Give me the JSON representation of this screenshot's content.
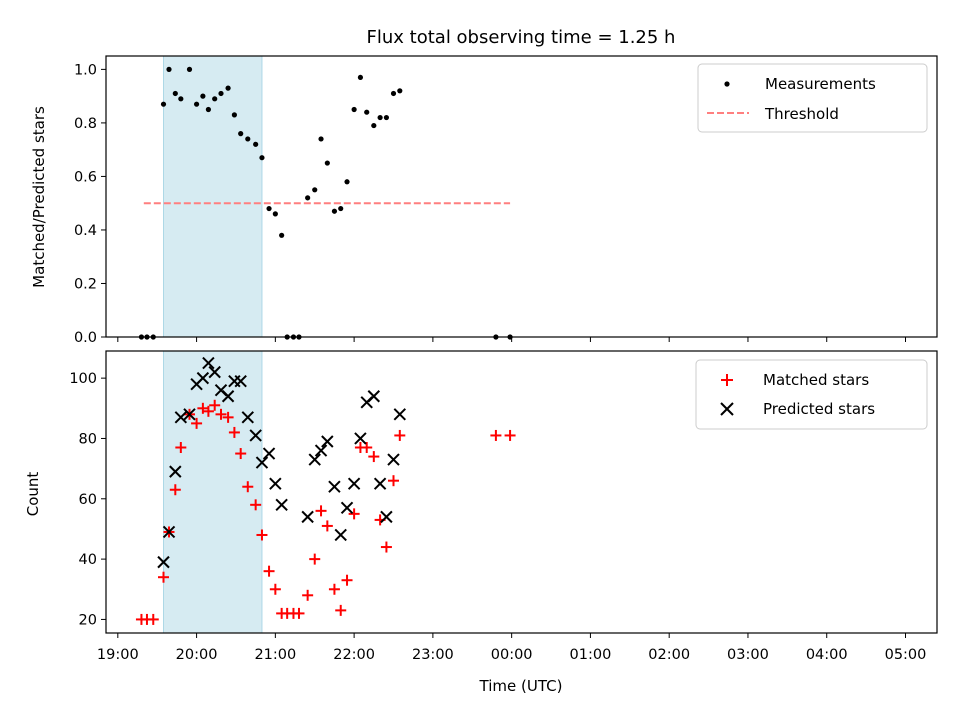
{
  "chart_data": [
    {
      "type": "scatter",
      "title": "Flux total observing time = 1.25 h",
      "ylabel": "Matched/Predicted stars",
      "xlabel": "",
      "x_unit": "hours since 19:00 UTC (x-axis shows times of day)",
      "xlim": [
        -0.15,
        10.4
      ],
      "ylim": [
        0.0,
        1.05
      ],
      "yticks": [
        0.0,
        0.2,
        0.4,
        0.6,
        0.8,
        1.0
      ],
      "ytick_labels": [
        "0.0",
        "0.2",
        "0.4",
        "0.6",
        "0.8",
        "1.0"
      ],
      "shaded_span": [
        0.58,
        1.83
      ],
      "legend_position": "upper right",
      "threshold": {
        "name": "Threshold",
        "y": 0.5,
        "x_range": [
          0.33,
          4.98
        ],
        "style": "dashed",
        "color": "#ff7f7f"
      },
      "series": [
        {
          "name": "Measurements",
          "color": "#000000",
          "marker": "dot",
          "points": [
            [
              0.3,
              0.0
            ],
            [
              0.37,
              0.0
            ],
            [
              0.45,
              0.0
            ],
            [
              0.58,
              0.87
            ],
            [
              0.65,
              1.0
            ],
            [
              0.73,
              0.91
            ],
            [
              0.8,
              0.89
            ],
            [
              0.91,
              1.0
            ],
            [
              1.0,
              0.87
            ],
            [
              1.08,
              0.9
            ],
            [
              1.15,
              0.85
            ],
            [
              1.23,
              0.89
            ],
            [
              1.31,
              0.91
            ],
            [
              1.4,
              0.93
            ],
            [
              1.48,
              0.83
            ],
            [
              1.56,
              0.76
            ],
            [
              1.65,
              0.74
            ],
            [
              1.75,
              0.72
            ],
            [
              1.83,
              0.67
            ],
            [
              1.92,
              0.48
            ],
            [
              2.0,
              0.46
            ],
            [
              2.08,
              0.38
            ],
            [
              2.15,
              0.0
            ],
            [
              2.23,
              0.0
            ],
            [
              2.3,
              0.0
            ],
            [
              2.41,
              0.52
            ],
            [
              2.5,
              0.55
            ],
            [
              2.58,
              0.74
            ],
            [
              2.66,
              0.65
            ],
            [
              2.75,
              0.47
            ],
            [
              2.83,
              0.48
            ],
            [
              2.91,
              0.58
            ],
            [
              3.0,
              0.85
            ],
            [
              3.08,
              0.97
            ],
            [
              3.16,
              0.84
            ],
            [
              3.25,
              0.79
            ],
            [
              3.33,
              0.82
            ],
            [
              3.41,
              0.82
            ],
            [
              3.5,
              0.91
            ],
            [
              3.58,
              0.92
            ],
            [
              4.8,
              0.0
            ],
            [
              4.98,
              0.0
            ]
          ]
        }
      ]
    },
    {
      "type": "scatter",
      "title": "",
      "ylabel": "Count",
      "xlabel": "Time (UTC)",
      "x_unit": "hours since 19:00 UTC",
      "xlim": [
        -0.15,
        10.4
      ],
      "ylim": [
        15.5,
        109
      ],
      "yticks": [
        20,
        40,
        60,
        80,
        100
      ],
      "ytick_labels": [
        "20",
        "40",
        "60",
        "80",
        "100"
      ],
      "xticks": [
        0,
        1,
        2,
        3,
        4,
        5,
        6,
        7,
        8,
        9,
        10
      ],
      "xtick_labels": [
        "19:00",
        "20:00",
        "21:00",
        "22:00",
        "23:00",
        "00:00",
        "01:00",
        "02:00",
        "03:00",
        "04:00",
        "05:00"
      ],
      "shaded_span": [
        0.58,
        1.83
      ],
      "legend_position": "upper right",
      "series": [
        {
          "name": "Matched stars",
          "color": "#ff0000",
          "marker": "plus",
          "points": [
            [
              0.3,
              20
            ],
            [
              0.37,
              20
            ],
            [
              0.45,
              20
            ],
            [
              0.58,
              34
            ],
            [
              0.65,
              49
            ],
            [
              0.73,
              63
            ],
            [
              0.8,
              77
            ],
            [
              0.91,
              88
            ],
            [
              1.0,
              85
            ],
            [
              1.08,
              90
            ],
            [
              1.15,
              89
            ],
            [
              1.23,
              91
            ],
            [
              1.31,
              88
            ],
            [
              1.4,
              87
            ],
            [
              1.48,
              82
            ],
            [
              1.56,
              75
            ],
            [
              1.65,
              64
            ],
            [
              1.75,
              58
            ],
            [
              1.83,
              48
            ],
            [
              1.92,
              36
            ],
            [
              2.0,
              30
            ],
            [
              2.08,
              22
            ],
            [
              2.15,
              22
            ],
            [
              2.23,
              22
            ],
            [
              2.3,
              22
            ],
            [
              2.41,
              28
            ],
            [
              2.5,
              40
            ],
            [
              2.58,
              56
            ],
            [
              2.66,
              51
            ],
            [
              2.75,
              30
            ],
            [
              2.83,
              23
            ],
            [
              2.91,
              33
            ],
            [
              3.0,
              55
            ],
            [
              3.08,
              77
            ],
            [
              3.16,
              77
            ],
            [
              3.25,
              74
            ],
            [
              3.33,
              53
            ],
            [
              3.41,
              44
            ],
            [
              3.5,
              66
            ],
            [
              3.58,
              81
            ],
            [
              4.8,
              81
            ],
            [
              4.98,
              81
            ]
          ]
        },
        {
          "name": "Predicted stars",
          "color": "#000000",
          "marker": "x",
          "points": [
            [
              0.58,
              39
            ],
            [
              0.65,
              49
            ],
            [
              0.73,
              69
            ],
            [
              0.8,
              87
            ],
            [
              0.91,
              88
            ],
            [
              1.0,
              98
            ],
            [
              1.08,
              100
            ],
            [
              1.15,
              105
            ],
            [
              1.23,
              102
            ],
            [
              1.31,
              96
            ],
            [
              1.4,
              94
            ],
            [
              1.48,
              99
            ],
            [
              1.56,
              99
            ],
            [
              1.65,
              87
            ],
            [
              1.75,
              81
            ],
            [
              1.83,
              72
            ],
            [
              1.92,
              75
            ],
            [
              2.0,
              65
            ],
            [
              2.08,
              58
            ],
            [
              2.41,
              54
            ],
            [
              2.5,
              73
            ],
            [
              2.58,
              76
            ],
            [
              2.66,
              79
            ],
            [
              2.75,
              64
            ],
            [
              2.83,
              48
            ],
            [
              2.91,
              57
            ],
            [
              3.0,
              65
            ],
            [
              3.08,
              80
            ],
            [
              3.16,
              92
            ],
            [
              3.25,
              94
            ],
            [
              3.33,
              65
            ],
            [
              3.41,
              54
            ],
            [
              3.5,
              73
            ],
            [
              3.58,
              88
            ]
          ]
        }
      ]
    }
  ]
}
